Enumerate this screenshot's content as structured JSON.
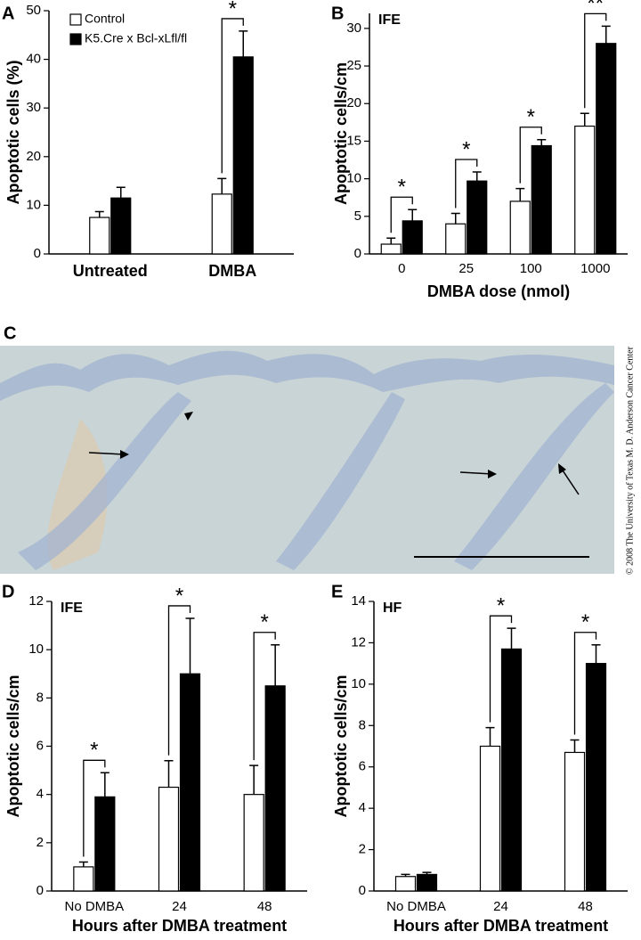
{
  "chart_data": [
    {
      "type": "bar",
      "panel": "A",
      "y_label": "Apoptotic cells (%)",
      "legend": "upper left",
      "categories": [
        "Untreated",
        "DMBA"
      ],
      "series": [
        {
          "name": "Control",
          "color": "#ffffff",
          "values": [
            7.5,
            12.3
          ],
          "errors": [
            1.2,
            3.2
          ]
        },
        {
          "name": "K5.Cre x Bcl-xLfl/fl",
          "color": "#000000",
          "values": [
            11.5,
            40.5
          ],
          "errors": [
            2.2,
            5.3
          ]
        }
      ],
      "significance": [
        null,
        "*"
      ],
      "ylim": [
        0,
        50
      ],
      "yticks": [
        0,
        10,
        20,
        30,
        40,
        50
      ]
    },
    {
      "type": "bar",
      "panel": "B",
      "title": "IFE",
      "y_label": "Apoptotic cells/cm",
      "x_label": "DMBA dose (nmol)",
      "categories": [
        "0",
        "25",
        "100",
        "1000"
      ],
      "series": [
        {
          "color": "#ffffff",
          "values": [
            1.3,
            4.0,
            7.0,
            17.0
          ],
          "errors": [
            0.8,
            1.4,
            1.7,
            1.7
          ]
        },
        {
          "color": "#000000",
          "values": [
            4.4,
            9.7,
            14.4,
            28.0
          ],
          "errors": [
            1.5,
            1.2,
            0.8,
            2.3
          ]
        }
      ],
      "significance": [
        "*",
        "*",
        "*",
        "**"
      ],
      "ylim": [
        0,
        32
      ],
      "yticks": [
        0,
        5,
        10,
        15,
        20,
        25,
        30
      ]
    },
    {
      "type": "bar",
      "panel": "D",
      "title": "IFE",
      "y_label": "Apoptotic cells/cm",
      "x_label": "Hours after DMBA treatment",
      "categories": [
        "No DMBA",
        "24",
        "48"
      ],
      "series": [
        {
          "color": "#ffffff",
          "values": [
            1.0,
            4.3,
            4.0
          ],
          "errors": [
            0.2,
            1.1,
            1.2
          ]
        },
        {
          "color": "#000000",
          "values": [
            3.9,
            9.0,
            8.5
          ],
          "errors": [
            1.0,
            2.3,
            1.7
          ]
        }
      ],
      "significance": [
        "*",
        "*",
        "*"
      ],
      "ylim": [
        0,
        12
      ],
      "yticks": [
        0,
        2,
        4,
        6,
        8,
        10,
        12
      ]
    },
    {
      "type": "bar",
      "panel": "E",
      "title": "HF",
      "y_label": "Apoptotic cells/cm",
      "x_label": "Hours after DMBA treatment",
      "categories": [
        "No DMBA",
        "24",
        "48"
      ],
      "series": [
        {
          "color": "#ffffff",
          "values": [
            0.7,
            7.0,
            6.7
          ],
          "errors": [
            0.1,
            0.9,
            0.6
          ]
        },
        {
          "color": "#000000",
          "values": [
            0.8,
            11.7,
            11.0
          ],
          "errors": [
            0.1,
            1.0,
            0.9
          ]
        }
      ],
      "significance": [
        null,
        "*",
        "*"
      ],
      "ylim": [
        0,
        14
      ],
      "yticks": [
        0,
        2,
        4,
        6,
        8,
        10,
        12,
        14
      ]
    }
  ],
  "panel_c": {
    "label": "C",
    "copyright": "© 2008 The University of Texas M. D. Anderson Cancer Center"
  }
}
